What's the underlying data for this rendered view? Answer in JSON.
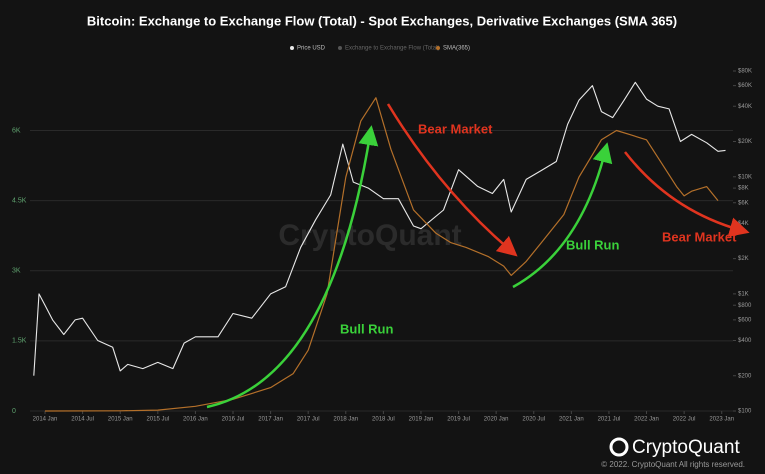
{
  "chart_data": {
    "type": "line",
    "title": "Bitcoin: Exchange to Exchange Flow (Total) - Spot Exchanges, Derivative Exchanges (SMA 365)",
    "xlim": [
      2013.8,
      2023.15
    ],
    "xticks": [
      {
        "value": 2014,
        "label": "2014 Jan"
      },
      {
        "value": 2014.5,
        "label": "2014 Jul"
      },
      {
        "value": 2015,
        "label": "2015 Jan"
      },
      {
        "value": 2015.5,
        "label": "2015 Jul"
      },
      {
        "value": 2016,
        "label": "2016 Jan"
      },
      {
        "value": 2016.5,
        "label": "2016 Jul"
      },
      {
        "value": 2017,
        "label": "2017 Jan"
      },
      {
        "value": 2017.5,
        "label": "2017 Jul"
      },
      {
        "value": 2018,
        "label": "2018 Jan"
      },
      {
        "value": 2018.5,
        "label": "2018 Jul"
      },
      {
        "value": 2019,
        "label": "2019 Jan"
      },
      {
        "value": 2019.5,
        "label": "2019 Jul"
      },
      {
        "value": 2020,
        "label": "2020 Jan"
      },
      {
        "value": 2020.5,
        "label": "2020 Jul"
      },
      {
        "value": 2021,
        "label": "2021 Jan"
      },
      {
        "value": 2021.5,
        "label": "2021 Jul"
      },
      {
        "value": 2022,
        "label": "2022 Jan"
      },
      {
        "value": 2022.5,
        "label": "2022 Jul"
      },
      {
        "value": 2023,
        "label": "2023 Jan"
      }
    ],
    "ylim": [
      0,
      7400
    ],
    "yticks": [
      0,
      {
        "value": 1500,
        "label": "1.5K"
      },
      {
        "value": 3000,
        "label": "3K"
      },
      {
        "value": 4500,
        "label": "4.5K"
      },
      {
        "value": 6000,
        "label": "6K"
      }
    ],
    "y2lim": [
      100,
      90000
    ],
    "y2scale": "log",
    "y2ticks": [
      {
        "value": 100,
        "label": "$100"
      },
      {
        "value": 200,
        "label": "$200"
      },
      {
        "value": 400,
        "label": "$400"
      },
      {
        "value": 600,
        "label": "$600"
      },
      {
        "value": 800,
        "label": "$800"
      },
      {
        "value": 1000,
        "label": "$1K"
      },
      {
        "value": 2000,
        "label": "$2K"
      },
      {
        "value": 4000,
        "label": "$4K"
      },
      {
        "value": 6000,
        "label": "$6K"
      },
      {
        "value": 8000,
        "label": "$8K"
      },
      {
        "value": 10000,
        "label": "$10K"
      },
      {
        "value": 20000,
        "label": "$20K"
      },
      {
        "value": 40000,
        "label": "$40K"
      },
      {
        "value": 60000,
        "label": "$60K"
      },
      {
        "value": 80000,
        "label": "$80K"
      }
    ],
    "grid": true,
    "series": [
      {
        "name": "Price USD",
        "color": "#e8e8e8",
        "axis": "y2",
        "x": [
          2013.85,
          2013.92,
          2014.0,
          2014.1,
          2014.25,
          2014.4,
          2014.5,
          2014.7,
          2014.9,
          2015.0,
          2015.1,
          2015.3,
          2015.5,
          2015.7,
          2015.85,
          2016.0,
          2016.3,
          2016.5,
          2016.75,
          2017.0,
          2017.2,
          2017.4,
          2017.6,
          2017.8,
          2017.96,
          2018.1,
          2018.3,
          2018.5,
          2018.7,
          2018.9,
          2019.0,
          2019.3,
          2019.5,
          2019.75,
          2019.95,
          2020.1,
          2020.2,
          2020.4,
          2020.6,
          2020.8,
          2020.95,
          2021.1,
          2021.28,
          2021.4,
          2021.55,
          2021.7,
          2021.85,
          2022.0,
          2022.15,
          2022.3,
          2022.45,
          2022.6,
          2022.8,
          2022.95,
          2023.05
        ],
        "values": [
          200,
          1000,
          800,
          600,
          450,
          600,
          620,
          400,
          350,
          220,
          250,
          230,
          260,
          230,
          380,
          430,
          430,
          680,
          620,
          1000,
          1150,
          2500,
          4300,
          7000,
          19000,
          9000,
          8000,
          6500,
          6500,
          3800,
          3600,
          5200,
          11500,
          8300,
          7200,
          9500,
          5000,
          9500,
          11300,
          13500,
          28000,
          45000,
          60000,
          36000,
          32000,
          45000,
          64000,
          46000,
          40000,
          38000,
          20000,
          23000,
          19500,
          16500,
          16800
        ]
      },
      {
        "name": "Exchange to Exchange Flow (Total)",
        "color": "#555555",
        "visible": false
      },
      {
        "name": "SMA(365)",
        "color": "#b4702a",
        "axis": "y",
        "x": [
          2014.0,
          2015.0,
          2015.5,
          2016.0,
          2016.5,
          2017.0,
          2017.3,
          2017.5,
          2017.75,
          2018.0,
          2018.2,
          2018.4,
          2018.6,
          2018.9,
          2019.2,
          2019.4,
          2019.6,
          2019.9,
          2020.1,
          2020.2,
          2020.4,
          2020.6,
          2020.9,
          2021.1,
          2021.4,
          2021.6,
          2021.8,
          2022.0,
          2022.2,
          2022.4,
          2022.5,
          2022.6,
          2022.8,
          2022.95
        ],
        "values": [
          0,
          5,
          20,
          100,
          250,
          500,
          800,
          1300,
          2500,
          5000,
          6200,
          6700,
          5600,
          4300,
          3800,
          3600,
          3500,
          3300,
          3100,
          2900,
          3200,
          3600,
          4200,
          5000,
          5800,
          6000,
          5900,
          5800,
          5300,
          4800,
          4600,
          4700,
          4800,
          4500
        ]
      }
    ],
    "annotations": [
      "Bear Market",
      "Bull Run",
      "Bull Run",
      "Bear Market"
    ],
    "watermark": "CryptoQuant",
    "logo": "CryptoQuant",
    "copyright": "© 2022. CryptoQuant All rights reserved."
  }
}
